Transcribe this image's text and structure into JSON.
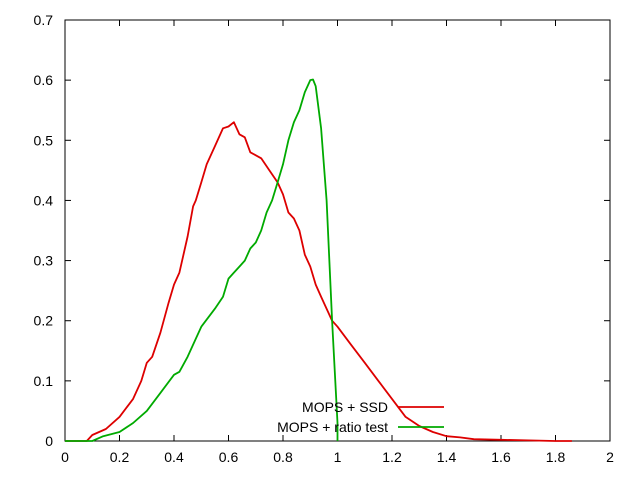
{
  "chart_data": {
    "type": "line",
    "title": "",
    "xlabel": "",
    "ylabel": "",
    "xlim": [
      0,
      2
    ],
    "ylim": [
      0,
      0.7
    ],
    "x_ticks": [
      "0",
      "0.2",
      "0.4",
      "0.6",
      "0.8",
      "1",
      "1.2",
      "1.4",
      "1.6",
      "1.8",
      "2"
    ],
    "y_ticks": [
      "0",
      "0.1",
      "0.2",
      "0.3",
      "0.4",
      "0.5",
      "0.6",
      "0.7"
    ],
    "grid": false,
    "legend_position": "bottom-center",
    "series": [
      {
        "name": "MOPS + SSD",
        "color": "#dd0000",
        "x": [
          0.0,
          0.08,
          0.1,
          0.15,
          0.2,
          0.25,
          0.28,
          0.3,
          0.32,
          0.35,
          0.38,
          0.4,
          0.42,
          0.45,
          0.47,
          0.48,
          0.5,
          0.52,
          0.55,
          0.58,
          0.6,
          0.62,
          0.64,
          0.66,
          0.68,
          0.7,
          0.72,
          0.75,
          0.78,
          0.8,
          0.82,
          0.84,
          0.86,
          0.88,
          0.9,
          0.92,
          0.94,
          0.96,
          0.98,
          1.0,
          1.05,
          1.1,
          1.15,
          1.2,
          1.25,
          1.3,
          1.35,
          1.4,
          1.45,
          1.5,
          1.6,
          1.7,
          1.8,
          1.86
        ],
        "y": [
          0.0,
          0.0,
          0.01,
          0.02,
          0.04,
          0.07,
          0.1,
          0.13,
          0.14,
          0.18,
          0.23,
          0.26,
          0.28,
          0.34,
          0.39,
          0.4,
          0.43,
          0.46,
          0.49,
          0.52,
          0.523,
          0.53,
          0.51,
          0.505,
          0.48,
          0.475,
          0.47,
          0.45,
          0.43,
          0.41,
          0.38,
          0.37,
          0.35,
          0.31,
          0.29,
          0.26,
          0.24,
          0.22,
          0.2,
          0.19,
          0.16,
          0.13,
          0.1,
          0.07,
          0.04,
          0.025,
          0.015,
          0.008,
          0.006,
          0.003,
          0.002,
          0.001,
          0.0,
          0.0
        ]
      },
      {
        "name": "MOPS + ratio test",
        "color": "#00aa00",
        "x": [
          0.0,
          0.1,
          0.14,
          0.2,
          0.25,
          0.3,
          0.35,
          0.4,
          0.42,
          0.45,
          0.48,
          0.5,
          0.55,
          0.58,
          0.6,
          0.62,
          0.64,
          0.66,
          0.68,
          0.7,
          0.72,
          0.74,
          0.76,
          0.78,
          0.8,
          0.82,
          0.84,
          0.86,
          0.88,
          0.9,
          0.91,
          0.92,
          0.94,
          0.96,
          0.98,
          1.0,
          1.0
        ],
        "y": [
          0.0,
          0.0,
          0.008,
          0.015,
          0.03,
          0.05,
          0.08,
          0.11,
          0.115,
          0.14,
          0.17,
          0.19,
          0.22,
          0.24,
          0.27,
          0.28,
          0.29,
          0.3,
          0.32,
          0.33,
          0.35,
          0.38,
          0.4,
          0.43,
          0.46,
          0.5,
          0.53,
          0.55,
          0.58,
          0.6,
          0.601,
          0.59,
          0.52,
          0.4,
          0.2,
          0.03,
          0.0
        ]
      }
    ]
  }
}
